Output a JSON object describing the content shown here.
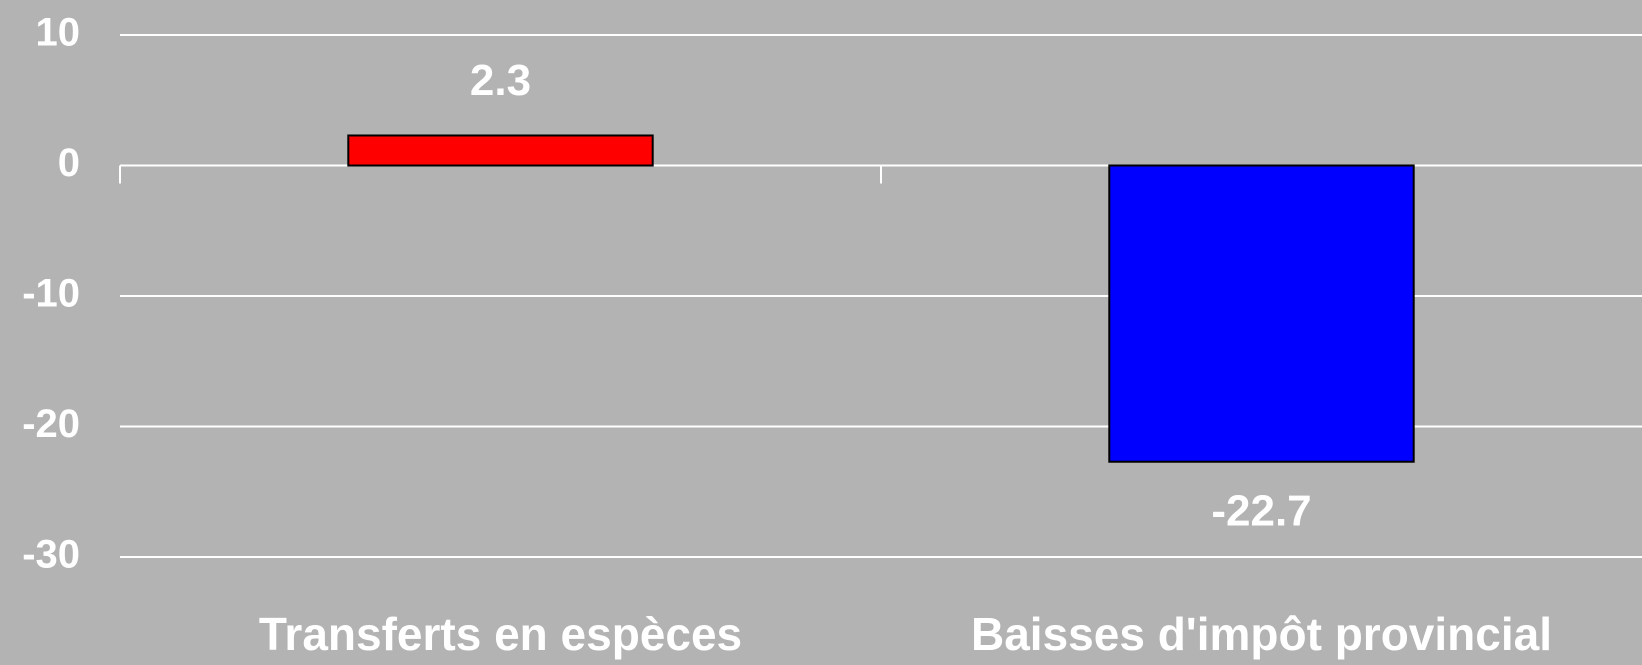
{
  "chart_data": {
    "type": "bar",
    "categories": [
      "Transferts en espèces",
      "Baisses d'impôt provincial"
    ],
    "values": [
      2.3,
      -22.7
    ],
    "colors": [
      "#ff0000",
      "#0000ff"
    ],
    "ylim": [
      -30,
      10
    ],
    "yticks": [
      10,
      0,
      -10,
      -20,
      -30
    ],
    "grid": true
  }
}
